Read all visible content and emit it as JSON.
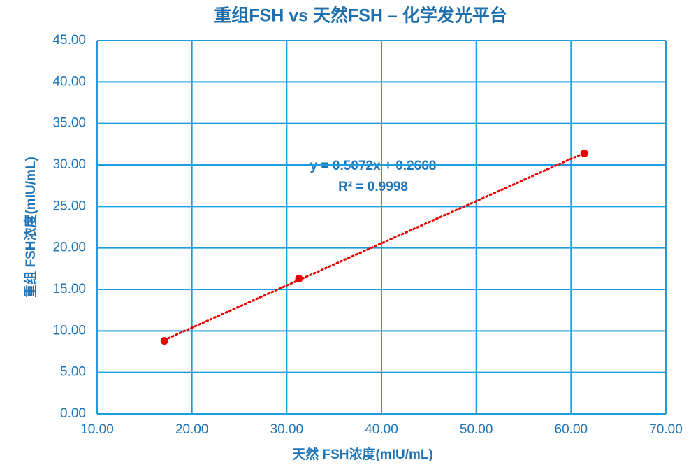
{
  "chart_data": {
    "type": "scatter",
    "title": "重组FSH vs 天然FSH – 化学发光平台",
    "x_label": "天然 FSH浓度(mIU/mL)",
    "y_label": "重组 FSH浓度(mIU/mL)",
    "annotations": [
      "y = 0.5072x + 0.2668",
      "R² = 0.9998"
    ],
    "trendline": true,
    "grid": true,
    "series": [
      {
        "color": "#e60000",
        "x": [
          17.1,
          31.3,
          61.4
        ],
        "values": [
          8.8,
          16.3,
          31.4
        ]
      }
    ],
    "xlim": [
      10,
      70
    ],
    "xticks": [
      {
        "value": 10,
        "label": "10.00"
      },
      {
        "value": 20,
        "label": "20.00"
      },
      {
        "value": 30,
        "label": "30.00"
      },
      {
        "value": 40,
        "label": "40.00"
      },
      {
        "value": 50,
        "label": "50.00"
      },
      {
        "value": 60,
        "label": "60.00"
      },
      {
        "value": 70,
        "label": "70.00"
      }
    ],
    "ylim": [
      0,
      45
    ],
    "yticks": [
      {
        "value": 0,
        "label": "0.00"
      },
      {
        "value": 5,
        "label": "5.00"
      },
      {
        "value": 10,
        "label": "10.00"
      },
      {
        "value": 15,
        "label": "15.00"
      },
      {
        "value": 20,
        "label": "20.00"
      },
      {
        "value": 25,
        "label": "25.00"
      },
      {
        "value": 30,
        "label": "30.00"
      },
      {
        "value": 35,
        "label": "35.00"
      },
      {
        "value": 40,
        "label": "40.00"
      },
      {
        "value": 45,
        "label": "45.00"
      }
    ]
  }
}
